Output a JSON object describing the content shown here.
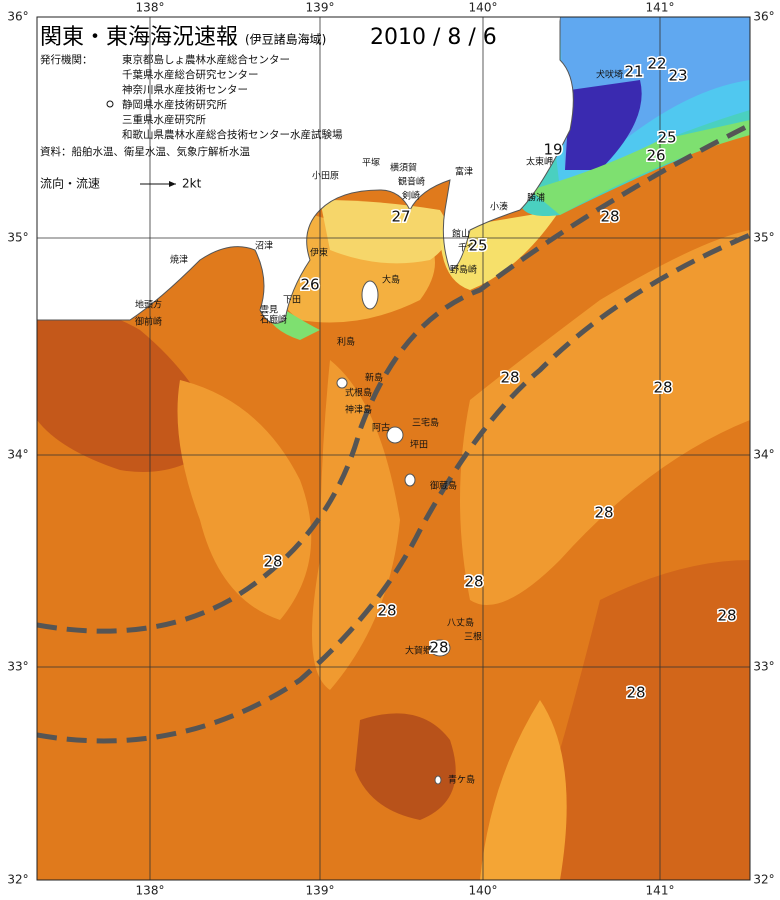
{
  "header": {
    "title": "関東・東海海況速報",
    "subtitle": "(伊豆諸島海域)",
    "date": "2010 / 8 / 6"
  },
  "info": {
    "agency_label": "発行機関：",
    "agencies": [
      "東京都島しょ農林水産総合センター",
      "千葉県水産総合研究センター",
      "神奈川県水産技術センター",
      "静岡県水産技術研究所",
      "三重県水産研究所",
      "和歌山県農林水産総合技術センター水産試験場"
    ],
    "source": "資料：船舶水温、衛星水温、気象庁解析水温",
    "legend_label": "流向・流速",
    "legend_speed": "2kt"
  },
  "axes": {
    "longitudes": [
      "138°",
      "139°",
      "140°",
      "141°"
    ],
    "latitudes": [
      "36°",
      "35°",
      "34°",
      "33°",
      "32°"
    ]
  },
  "places": [
    "犬吠埼",
    "太東岬",
    "勝浦",
    "小湊",
    "富津",
    "横須賀",
    "平塚",
    "小田原",
    "観音崎",
    "剣崎",
    "館山",
    "千倉",
    "野島崎",
    "伊東",
    "沼津",
    "焼津",
    "地頭方",
    "御前崎",
    "雲見",
    "下田",
    "石廊崎",
    "大島",
    "利島",
    "新島",
    "式根島",
    "神津島",
    "三宅島",
    "坪田",
    "阿古",
    "御蔵島",
    "八丈島",
    "三根",
    "大賀郷",
    "青ケ島"
  ],
  "temperature_labels": [
    "21",
    "22",
    "23",
    "19",
    "25",
    "26",
    "27",
    "28",
    "25",
    "26",
    "28",
    "28",
    "28",
    "28",
    "28",
    "28",
    "28",
    "28",
    "28"
  ]
}
